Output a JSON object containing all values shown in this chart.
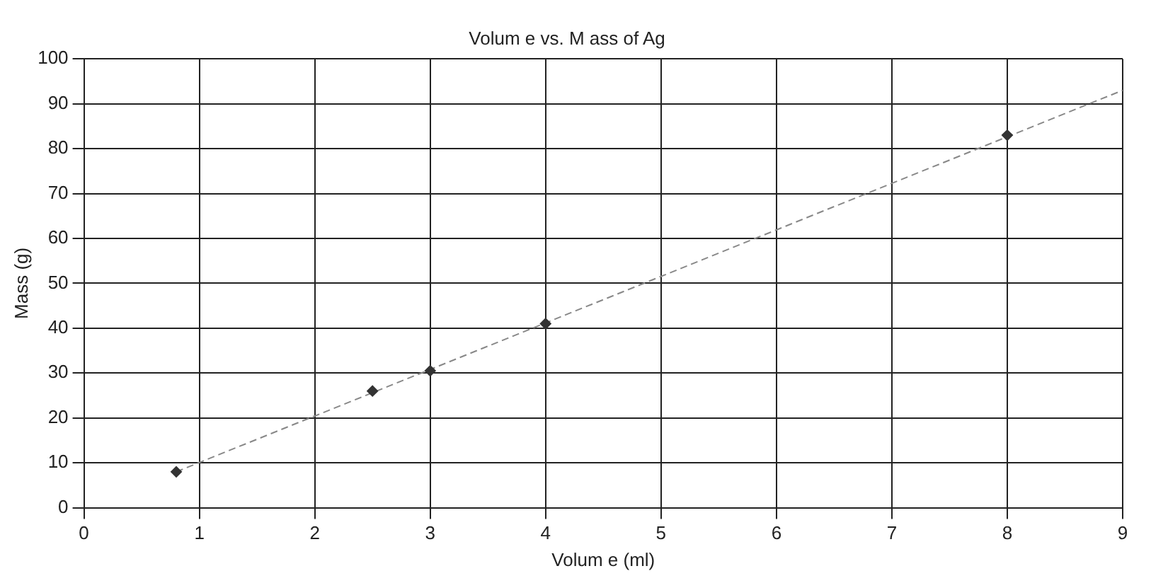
{
  "chart_data": {
    "type": "scatter",
    "title": "Volum e vs. M ass of Ag",
    "xlabel": "Volum e (ml)",
    "ylabel": "Mass (g)",
    "xlim": [
      0,
      9
    ],
    "xticks": [
      0,
      1,
      2,
      3,
      4,
      5,
      6,
      7,
      8,
      9
    ],
    "ylim": [
      0,
      100
    ],
    "yticks": [
      0,
      10,
      20,
      30,
      40,
      50,
      60,
      70,
      80,
      90,
      100
    ],
    "grid": true,
    "marker": "diamond",
    "legend": false,
    "series": [
      {
        "color": "#333333",
        "x": [
          0.8,
          2.5,
          3,
          4,
          8
        ],
        "values": [
          8,
          26,
          30.5,
          41,
          83
        ]
      },
      {
        "type": "line",
        "color": "#888888",
        "line_style": "dashed",
        "marker": "none",
        "x": [
          0.8,
          9
        ],
        "values": [
          8,
          93
        ]
      }
    ]
  }
}
